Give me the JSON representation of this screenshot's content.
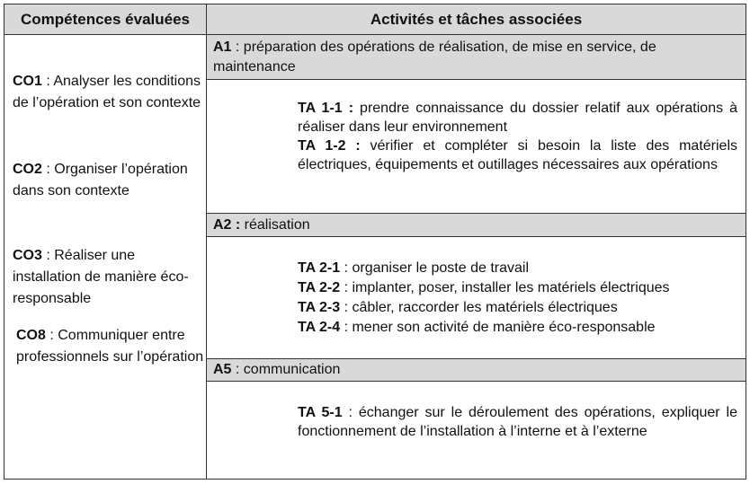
{
  "header": {
    "col1": "Compétences évaluées",
    "col2": "Activités et tâches associées"
  },
  "competences": [
    {
      "code": "CO1",
      "text": " : Analyser les conditions de l’opération et son contexte"
    },
    {
      "code": "CO2",
      "text": " : Organiser l’opération dans son contexte"
    },
    {
      "code": "CO3",
      "text": " : Réaliser une installation de manière éco-responsable"
    },
    {
      "code": "CO8",
      "text": " : Communiquer entre professionnels sur l’opération"
    }
  ],
  "activities": [
    {
      "code": "A1",
      "text": " : préparation des opérations de réalisation, de mise en service, de maintenance",
      "tasks": [
        {
          "code": "TA 1-1 :",
          "text": " prendre connaissance du dossier relatif aux opérations à réaliser dans leur environnement"
        },
        {
          "code": "TA 1-2 :",
          "text": " vérifier et compléter si besoin la liste des matériels électriques, équipements et outillages nécessaires aux opérations"
        }
      ]
    },
    {
      "code": "A2 :",
      "text": " réalisation",
      "tasks": [
        {
          "code": "TA 2-1",
          "text": " : organiser le poste de travail"
        },
        {
          "code": "TA 2-2",
          "text": " : implanter, poser, installer les matériels électriques"
        },
        {
          "code": "TA 2-3",
          "text": " : câbler, raccorder les matériels électriques"
        },
        {
          "code": "TA 2-4",
          "text": " : mener son activité de manière éco-responsable"
        }
      ]
    },
    {
      "code": "A5",
      "text": " : communication",
      "tasks": [
        {
          "code": "TA 5-1",
          "text": " : échanger sur le déroulement des opérations, expliquer le fonctionnement de l’installation à l’interne et à l’externe"
        }
      ]
    }
  ]
}
